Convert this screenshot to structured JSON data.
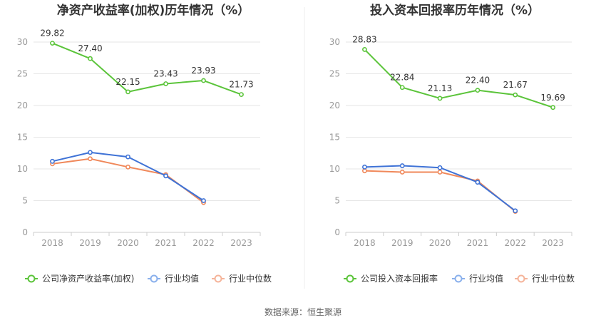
{
  "footer": {
    "source_label": "数据来源：恒生聚源"
  },
  "colors": {
    "company": "#5bc43a",
    "industry_avg": "#3e72d6",
    "industry_median": "#f0885a",
    "legend_avg": "#8ab0ec",
    "legend_median": "#f5b49a",
    "grid": "#e6e6e6",
    "axis": "#cccccc"
  },
  "chart_data": [
    {
      "type": "line",
      "title": "净资产收益率(加权)历年情况（%）",
      "categories": [
        "2018",
        "2019",
        "2020",
        "2021",
        "2022",
        "2023"
      ],
      "ylim": [
        0,
        30
      ],
      "yticks": [
        "0",
        "5",
        "10",
        "15",
        "20",
        "25",
        "30"
      ],
      "grid": true,
      "legend_position": "bottom-left",
      "series": [
        {
          "name": "公司净资产收益率(加权)",
          "values": [
            29.82,
            27.4,
            22.15,
            23.43,
            23.93,
            21.73
          ],
          "labels": [
            "29.82",
            "27.40",
            "22.15",
            "23.43",
            "23.93",
            "21.73"
          ]
        },
        {
          "name": "行业均值",
          "values": [
            11.2,
            12.6,
            11.9,
            8.9,
            5.0,
            null
          ]
        },
        {
          "name": "行业中位数",
          "values": [
            10.8,
            11.6,
            10.3,
            9.1,
            4.7,
            null
          ]
        }
      ]
    },
    {
      "type": "line",
      "title": "投入资本回报率历年情况（%）",
      "categories": [
        "2018",
        "2019",
        "2020",
        "2021",
        "2022",
        "2023"
      ],
      "ylim": [
        0,
        30
      ],
      "yticks": [
        "0",
        "5",
        "10",
        "15",
        "20",
        "25",
        "30"
      ],
      "grid": true,
      "legend_position": "bottom-left",
      "series": [
        {
          "name": "公司投入资本回报率",
          "values": [
            28.83,
            22.84,
            21.13,
            22.4,
            21.67,
            19.69
          ],
          "labels": [
            "28.83",
            "22.84",
            "21.13",
            "22.40",
            "21.67",
            "19.69"
          ]
        },
        {
          "name": "行业均值",
          "values": [
            10.3,
            10.5,
            10.2,
            7.9,
            3.4,
            null
          ]
        },
        {
          "name": "行业中位数",
          "values": [
            9.7,
            9.5,
            9.5,
            8.1,
            3.3,
            null
          ]
        }
      ]
    }
  ]
}
